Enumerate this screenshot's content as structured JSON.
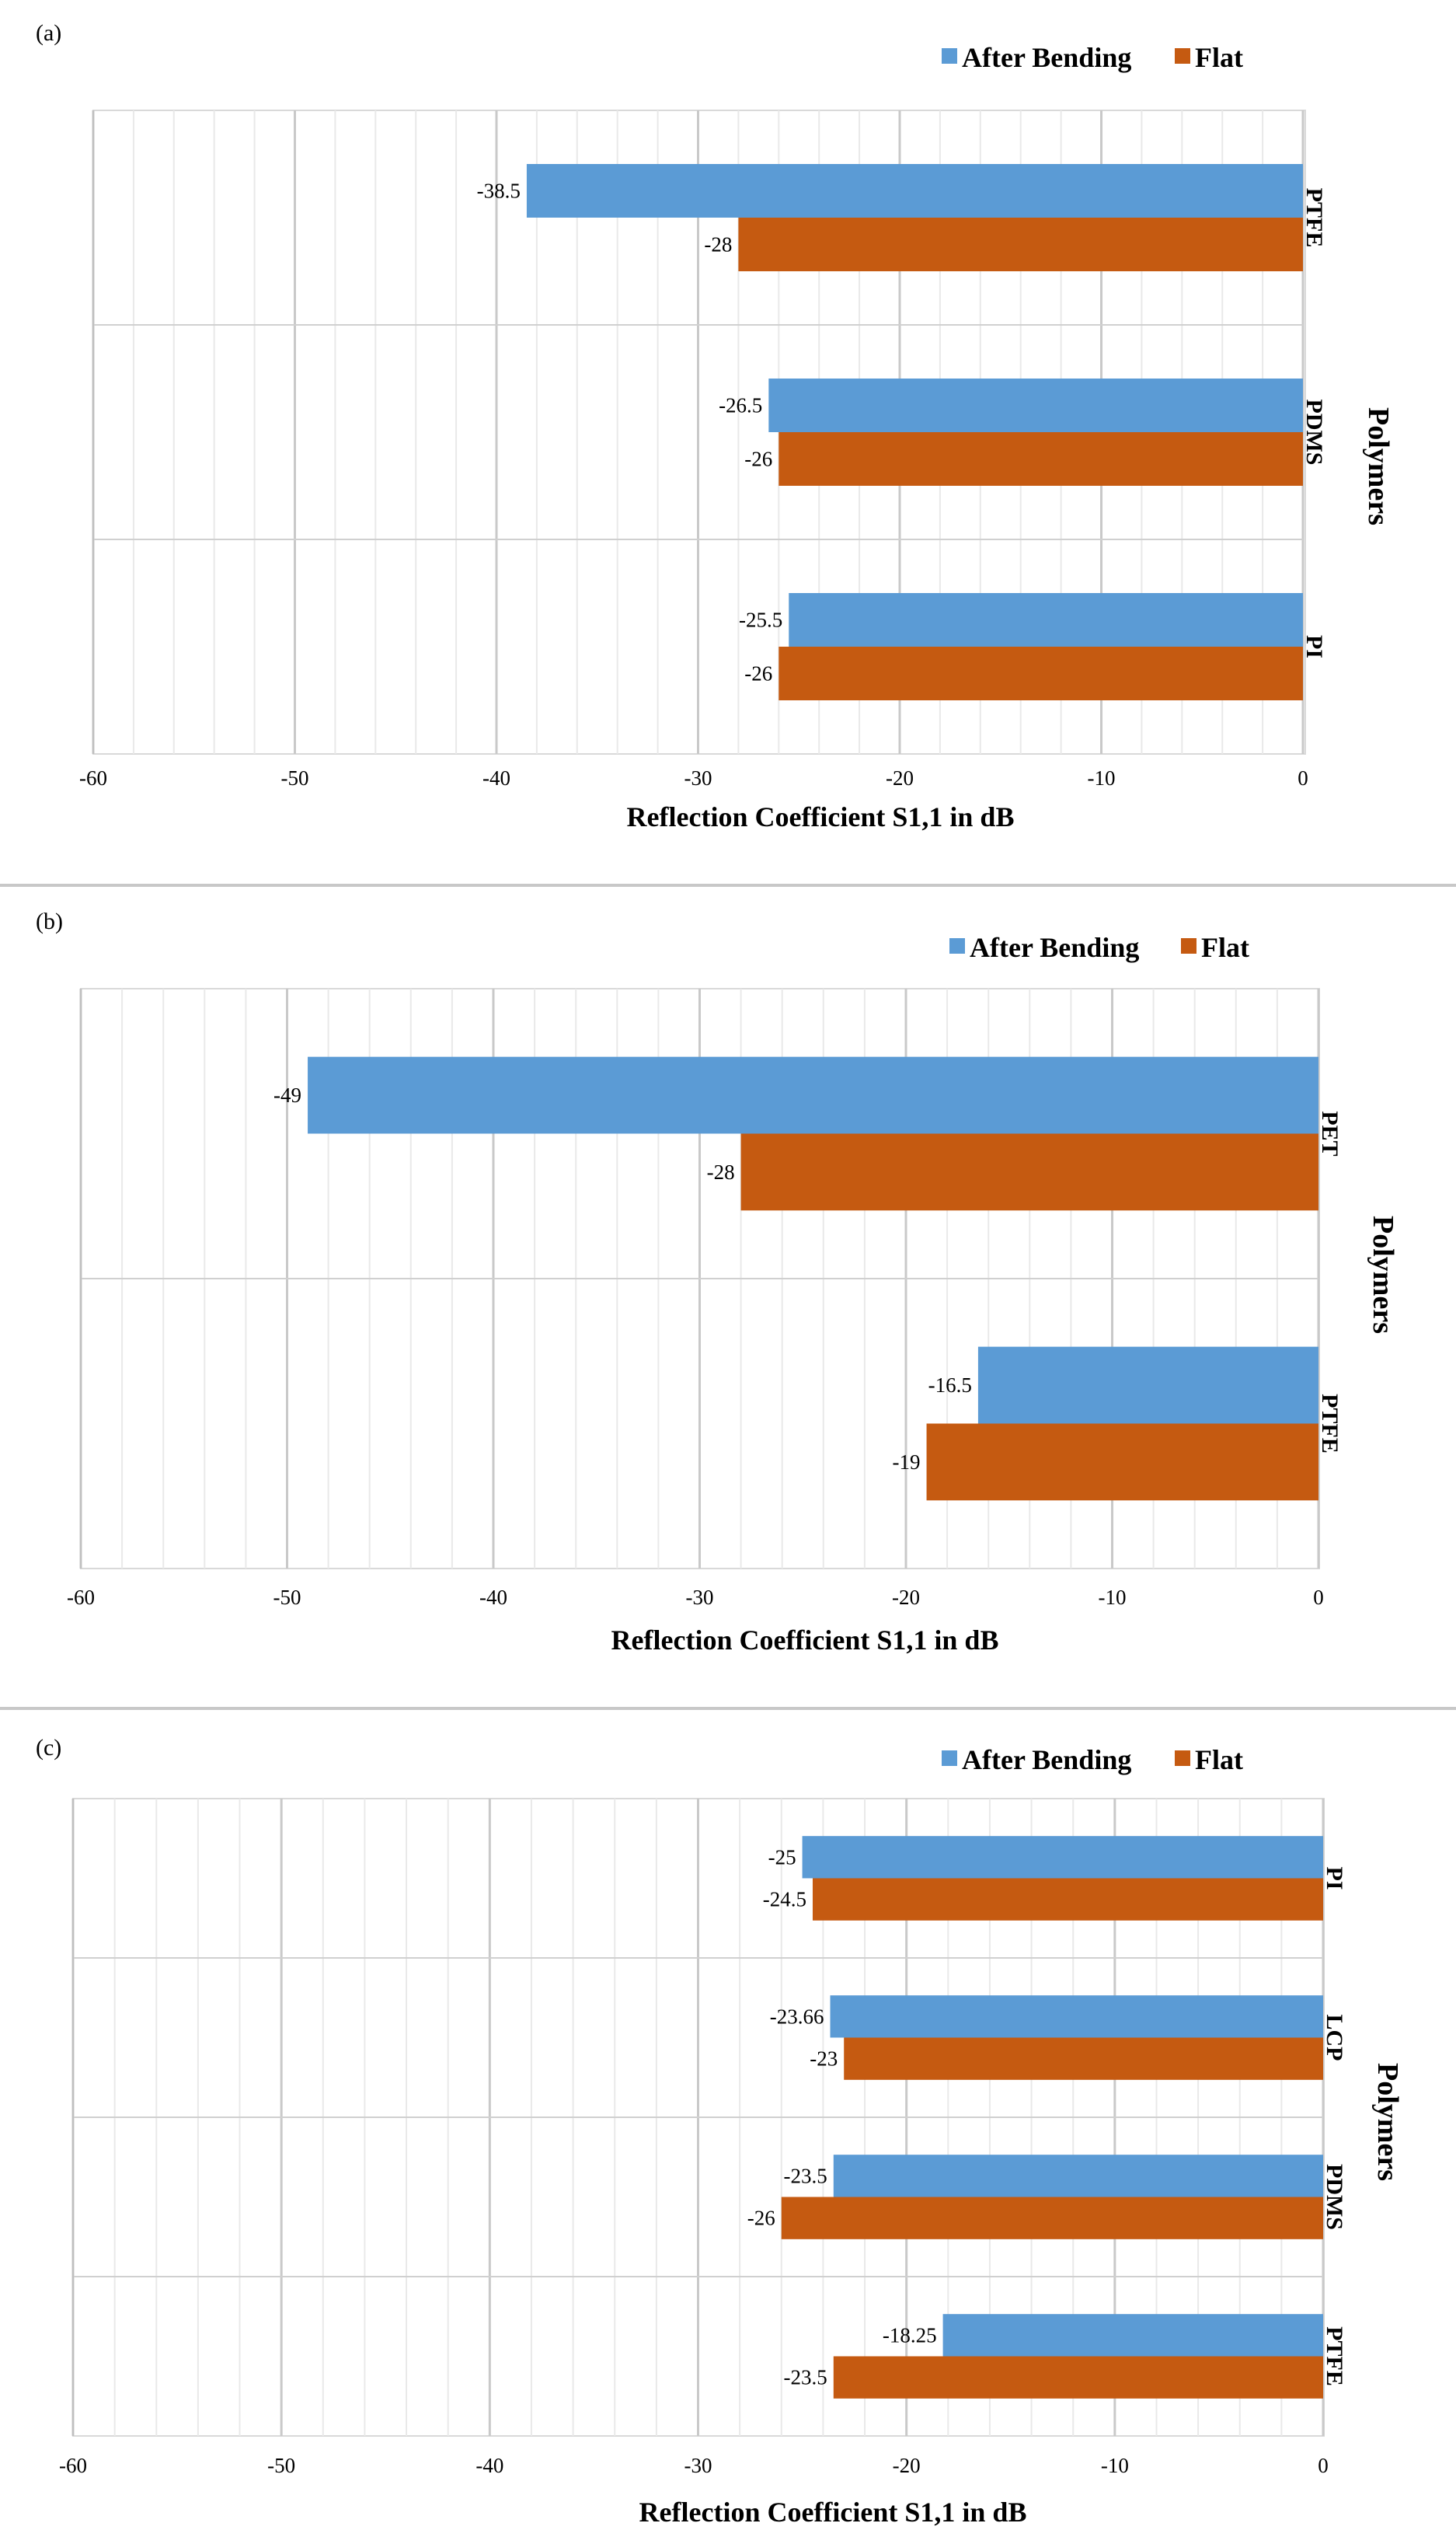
{
  "chart_data": [
    {
      "panel_label": "(a)",
      "type": "bar",
      "orientation": "horizontal",
      "categories": [
        "PTFE",
        "PDMS",
        "PI"
      ],
      "series": [
        {
          "name": "After Bending",
          "color": "#5B9BD5",
          "values": [
            -38.5,
            -26.5,
            -25.5
          ],
          "labels": [
            "-38.5",
            "-26.5",
            "-25.5"
          ]
        },
        {
          "name": "Flat",
          "color": "#C55A11",
          "values": [
            -28,
            -26,
            -26
          ],
          "labels": [
            "-28",
            "-26",
            "-26"
          ]
        }
      ],
      "xlabel": "Reflection Coefficient S1,1 in dB",
      "ylabel": "Polymers",
      "xlim": [
        -60,
        0
      ],
      "xticks": [
        "-60",
        "-50",
        "-40",
        "-30",
        "-20",
        "-10",
        "0"
      ],
      "grid": true,
      "legend": "top-right"
    },
    {
      "panel_label": "(b)",
      "type": "bar",
      "orientation": "horizontal",
      "categories": [
        "PET",
        "PTFE"
      ],
      "series": [
        {
          "name": "After Bending",
          "color": "#5B9BD5",
          "values": [
            -49,
            -16.5
          ],
          "labels": [
            "-49",
            "-16.5"
          ]
        },
        {
          "name": "Flat",
          "color": "#C55A11",
          "values": [
            -28,
            -19
          ],
          "labels": [
            "-28",
            "-19"
          ]
        }
      ],
      "xlabel": "Reflection Coefficient S1,1 in dB",
      "ylabel": "Polymers",
      "xlim": [
        -60,
        0
      ],
      "xticks": [
        "-60",
        "-50",
        "-40",
        "-30",
        "-20",
        "-10",
        "0"
      ],
      "grid": true,
      "legend": "top-right"
    },
    {
      "panel_label": "(c)",
      "type": "bar",
      "orientation": "horizontal",
      "categories": [
        "PI",
        "LCP",
        "PDMS",
        "PTFE"
      ],
      "series": [
        {
          "name": "After Bending",
          "color": "#5B9BD5",
          "values": [
            -25,
            -23.66,
            -23.5,
            -18.25
          ],
          "labels": [
            "-25",
            "-23.66",
            "-23.5",
            "-18.25"
          ]
        },
        {
          "name": "Flat",
          "color": "#C55A11",
          "values": [
            -24.5,
            -23,
            -26,
            -23.5
          ],
          "labels": [
            "-24.5",
            "-23",
            "-26",
            "-23.5"
          ]
        }
      ],
      "xlabel": "Reflection Coefficient S1,1 in dB",
      "ylabel": "Polymers",
      "xlim": [
        -60,
        0
      ],
      "xticks": [
        "-60",
        "-50",
        "-40",
        "-30",
        "-20",
        "-10",
        "0"
      ],
      "grid": true,
      "legend": "top-right"
    }
  ]
}
